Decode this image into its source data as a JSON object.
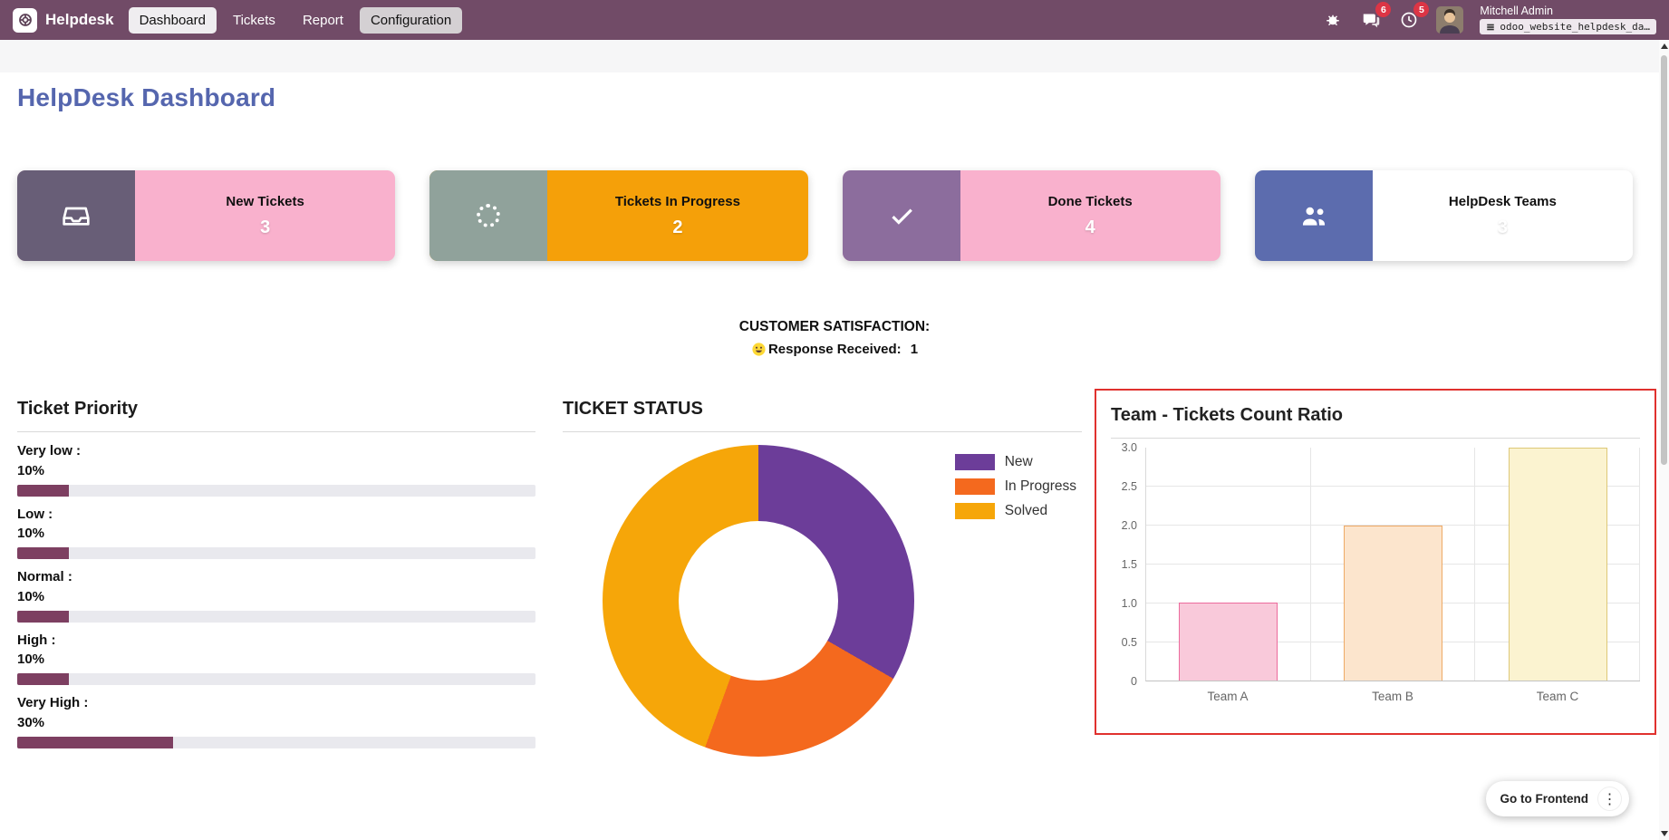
{
  "nav": {
    "brand": "Helpdesk",
    "items": [
      {
        "label": "Dashboard",
        "pill": "#efedf0"
      },
      {
        "label": "Tickets",
        "pill": null
      },
      {
        "label": "Report",
        "pill": null
      },
      {
        "label": "Configuration",
        "pill": "#d4d0d3"
      }
    ],
    "badges": {
      "messages": "6",
      "activities": "5"
    },
    "user": {
      "name": "Mitchell Admin",
      "database": "odoo_website_helpdesk_da…"
    },
    "colors": {
      "bar_bg": "#714B67",
      "badge": "#dc3545"
    }
  },
  "page_title": "HelpDesk Dashboard",
  "kpi_cards": [
    {
      "label": "New Tickets",
      "value": "3",
      "icon": "inbox-icon",
      "icon_bg": "#685e77",
      "body_bg": "#f9b1cd"
    },
    {
      "label": "Tickets In Progress",
      "value": "2",
      "icon": "spinner-icon",
      "icon_bg": "#90a29b",
      "body_bg": "#f5a009"
    },
    {
      "label": "Done Tickets",
      "value": "4",
      "icon": "check-icon",
      "icon_bg": "#8c6d9d",
      "body_bg": "#f9b1cd"
    },
    {
      "label": "HelpDesk Teams",
      "value": "3",
      "icon": "users-icon",
      "icon_bg": "#5c6cae",
      "body_bg": "#ffffff"
    }
  ],
  "satisfaction": {
    "title": "CUSTOMER SATISFACTION:",
    "icon": "smiley-icon",
    "label": "Response Received:",
    "value": "1"
  },
  "priority": {
    "title": "Ticket Priority",
    "bar_color": "#7d3f61",
    "track_color": "#e9e9ee",
    "items": [
      {
        "label": "Very low :",
        "pct": "10%",
        "value": 10
      },
      {
        "label": "Low :",
        "pct": "10%",
        "value": 10
      },
      {
        "label": "Normal :",
        "pct": "10%",
        "value": 10
      },
      {
        "label": "High :",
        "pct": "10%",
        "value": 10
      },
      {
        "label": "Very High :",
        "pct": "30%",
        "value": 30
      }
    ]
  },
  "status_chart": {
    "type": "pie",
    "title": "TICKET STATUS",
    "labels": [
      "New",
      "In Progress",
      "Solved"
    ],
    "values": [
      3,
      2,
      4
    ],
    "colors": [
      "#6c3d99",
      "#f4691e",
      "#f6a609"
    ],
    "legend_position": "right"
  },
  "team_chart": {
    "type": "bar",
    "title": "Team - Tickets Count Ratio",
    "categories": [
      "Team A",
      "Team B",
      "Team C"
    ],
    "values": [
      1,
      2,
      3
    ],
    "ylim": [
      0,
      3
    ],
    "y_max": 3,
    "ticks": [
      "3.0",
      "2.5",
      "2.0",
      "1.5",
      "1.0",
      "0.5",
      "0"
    ],
    "fill_colors": [
      "#f9c9da",
      "#fce5cd",
      "#fbf3d0"
    ],
    "border_colors": [
      "#ec6b9d",
      "#eeaa66",
      "#ddc878"
    ],
    "grid": "on",
    "border_color_card": "#e0312e"
  },
  "footer": {
    "frontend_button": "Go to Frontend",
    "more_icon": "kebab-menu-icon"
  }
}
